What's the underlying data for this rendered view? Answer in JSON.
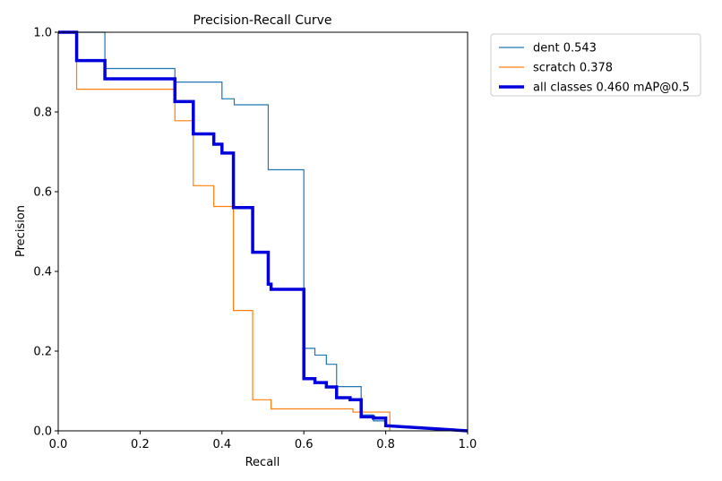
{
  "chart_data": {
    "type": "line",
    "title": "Precision-Recall Curve",
    "xlabel": "Recall",
    "ylabel": "Precision",
    "xlim": [
      0,
      1
    ],
    "ylim": [
      0,
      1
    ],
    "xticks": [
      0.0,
      0.2,
      0.4,
      0.6,
      0.8,
      1.0
    ],
    "yticks": [
      0.0,
      0.2,
      0.4,
      0.6,
      0.8,
      1.0
    ],
    "xtick_labels": [
      "0.0",
      "0.2",
      "0.4",
      "0.6",
      "0.8",
      "1.0"
    ],
    "ytick_labels": [
      "0.0",
      "0.2",
      "0.4",
      "0.6",
      "0.8",
      "1.0"
    ],
    "grid": false,
    "legend_position": "outside-top-right",
    "series": [
      {
        "name": "dent 0.543",
        "color": "#1f77b4",
        "weight": "thin",
        "points": [
          [
            0,
            1.0
          ],
          [
            0.114,
            1.0
          ],
          [
            0.114,
            0.909
          ],
          [
            0.285,
            0.909
          ],
          [
            0.285,
            0.875
          ],
          [
            0.4,
            0.875
          ],
          [
            0.4,
            0.833
          ],
          [
            0.43,
            0.833
          ],
          [
            0.43,
            0.818
          ],
          [
            0.513,
            0.818
          ],
          [
            0.513,
            0.655
          ],
          [
            0.6,
            0.655
          ],
          [
            0.6,
            0.207
          ],
          [
            0.627,
            0.207
          ],
          [
            0.627,
            0.19
          ],
          [
            0.655,
            0.19
          ],
          [
            0.655,
            0.167
          ],
          [
            0.68,
            0.167
          ],
          [
            0.68,
            0.111
          ],
          [
            0.74,
            0.111
          ],
          [
            0.74,
            0.04
          ],
          [
            0.77,
            0.04
          ],
          [
            0.77,
            0.025
          ],
          [
            0.8,
            0.025
          ],
          [
            0.8,
            0.012
          ],
          [
            1.0,
            0.0
          ]
        ]
      },
      {
        "name": "scratch 0.378",
        "color": "#ff7f0e",
        "weight": "thin",
        "points": [
          [
            0,
            1.0
          ],
          [
            0.045,
            1.0
          ],
          [
            0.045,
            0.857
          ],
          [
            0.285,
            0.857
          ],
          [
            0.285,
            0.778
          ],
          [
            0.33,
            0.778
          ],
          [
            0.33,
            0.615
          ],
          [
            0.38,
            0.615
          ],
          [
            0.38,
            0.563
          ],
          [
            0.428,
            0.563
          ],
          [
            0.428,
            0.302
          ],
          [
            0.475,
            0.302
          ],
          [
            0.475,
            0.078
          ],
          [
            0.52,
            0.078
          ],
          [
            0.52,
            0.055
          ],
          [
            0.72,
            0.055
          ],
          [
            0.72,
            0.047
          ],
          [
            0.81,
            0.047
          ],
          [
            0.81,
            0.0
          ]
        ]
      },
      {
        "name": "all classes 0.460 mAP@0.5",
        "color": "#0000dd",
        "weight": "thick",
        "points": [
          [
            0,
            1.0
          ],
          [
            0.045,
            1.0
          ],
          [
            0.045,
            0.929
          ],
          [
            0.114,
            0.929
          ],
          [
            0.114,
            0.883
          ],
          [
            0.285,
            0.883
          ],
          [
            0.285,
            0.826
          ],
          [
            0.33,
            0.826
          ],
          [
            0.33,
            0.745
          ],
          [
            0.38,
            0.745
          ],
          [
            0.38,
            0.719
          ],
          [
            0.4,
            0.719
          ],
          [
            0.4,
            0.697
          ],
          [
            0.428,
            0.697
          ],
          [
            0.428,
            0.56
          ],
          [
            0.475,
            0.56
          ],
          [
            0.475,
            0.448
          ],
          [
            0.513,
            0.448
          ],
          [
            0.513,
            0.368
          ],
          [
            0.52,
            0.368
          ],
          [
            0.52,
            0.355
          ],
          [
            0.6,
            0.355
          ],
          [
            0.6,
            0.131
          ],
          [
            0.627,
            0.131
          ],
          [
            0.627,
            0.121
          ],
          [
            0.655,
            0.121
          ],
          [
            0.655,
            0.11
          ],
          [
            0.68,
            0.11
          ],
          [
            0.68,
            0.083
          ],
          [
            0.713,
            0.083
          ],
          [
            0.713,
            0.078
          ],
          [
            0.74,
            0.078
          ],
          [
            0.74,
            0.035
          ],
          [
            0.77,
            0.035
          ],
          [
            0.77,
            0.032
          ],
          [
            0.8,
            0.032
          ],
          [
            0.8,
            0.013
          ],
          [
            1.0,
            0.0
          ]
        ]
      }
    ]
  }
}
